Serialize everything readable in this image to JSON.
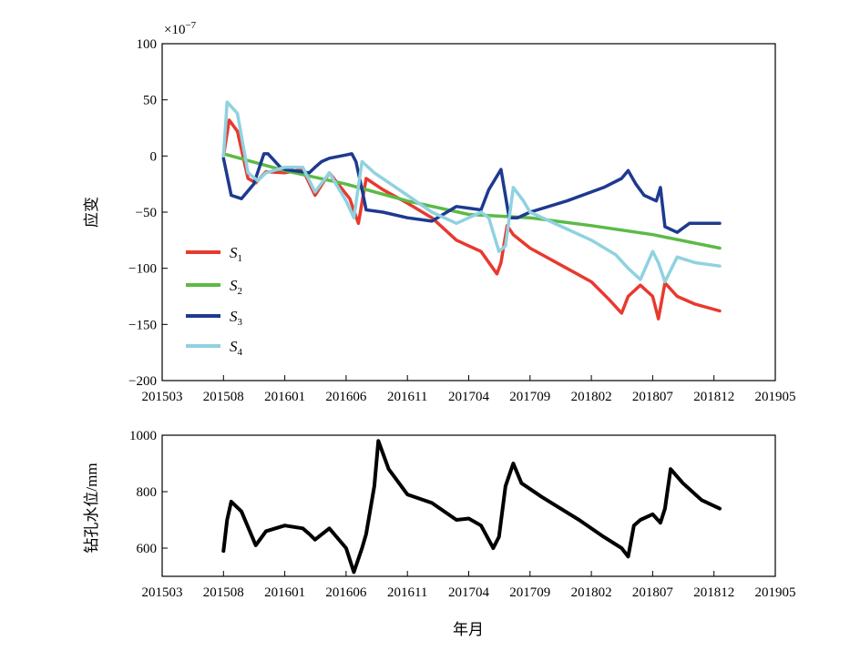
{
  "chart_data": [
    {
      "type": "line",
      "ylabel": "应变",
      "xlabel": "",
      "y_scale_note": "×10⁻⁷",
      "y_scale_base": "×10",
      "y_scale_exp": "−7",
      "x_tick_labels": [
        "201503",
        "201508",
        "201601",
        "201606",
        "201611",
        "201704",
        "201709",
        "201802",
        "201807",
        "201812",
        "201905"
      ],
      "xlim": [
        "2015-03",
        "2019-05"
      ],
      "ylim": [
        -200,
        100
      ],
      "y_ticks": [
        100,
        50,
        0,
        -50,
        -100,
        -150,
        -200
      ],
      "y_tick_labels": [
        "100",
        "50",
        "0",
        "−50",
        "−100",
        "−150",
        "−200"
      ],
      "grid": false,
      "legend_position": "center-left",
      "series": [
        {
          "name": "S1",
          "legend_main": "S",
          "legend_sub": "1",
          "color": "#e8392f",
          "x": [
            "2015-08-01",
            "2015-08-15",
            "2015-09-05",
            "2015-10-01",
            "2015-10-20",
            "2015-11-15",
            "2016-01-01",
            "2016-02-15",
            "2016-03-15",
            "2016-04-20",
            "2016-06-10",
            "2016-07-01",
            "2016-07-20",
            "2016-09-01",
            "2016-11-01",
            "2017-01-01",
            "2017-03-01",
            "2017-05-01",
            "2017-06-10",
            "2017-06-20",
            "2017-07-05",
            "2017-07-20",
            "2017-09-01",
            "2017-12-01",
            "2018-02-01",
            "2018-03-15",
            "2018-04-15",
            "2018-05-01",
            "2018-06-01",
            "2018-07-01",
            "2018-07-15",
            "2018-08-01",
            "2018-09-01",
            "2018-10-15",
            "2018-12-15"
          ],
          "y": [
            0,
            32,
            22,
            -20,
            -24,
            -14,
            -15,
            -12,
            -35,
            -15,
            -38,
            -60,
            -20,
            -30,
            -42,
            -55,
            -75,
            -85,
            -105,
            -95,
            -62,
            -70,
            -82,
            -100,
            -112,
            -128,
            -140,
            -125,
            -115,
            -125,
            -145,
            -113,
            -125,
            -132,
            -138
          ]
        },
        {
          "name": "S2",
          "legend_main": "S",
          "legend_sub": "2",
          "color": "#5cba47",
          "x": [
            "2015-08-01",
            "2016-01-01",
            "2016-06-01",
            "2016-11-01",
            "2017-04-01",
            "2017-09-01",
            "2018-02-01",
            "2018-07-01",
            "2018-12-15"
          ],
          "y": [
            2,
            -13,
            -25,
            -40,
            -52,
            -55,
            -62,
            -70,
            -82
          ]
        },
        {
          "name": "S3",
          "legend_main": "S",
          "legend_sub": "3",
          "color": "#1e3a8f",
          "x": [
            "2015-08-01",
            "2015-08-20",
            "2015-09-15",
            "2015-10-15",
            "2015-11-10",
            "2015-11-20",
            "2015-12-20",
            "2016-01-01",
            "2016-03-01",
            "2016-03-15",
            "2016-04-01",
            "2016-04-20",
            "2016-06-15",
            "2016-06-25",
            "2016-07-10",
            "2016-07-20",
            "2016-09-01",
            "2016-11-01",
            "2017-01-01",
            "2017-03-01",
            "2017-05-01",
            "2017-05-20",
            "2017-06-20",
            "2017-07-10",
            "2017-08-01",
            "2017-09-01",
            "2017-12-01",
            "2018-03-01",
            "2018-04-15",
            "2018-05-01",
            "2018-05-20",
            "2018-06-10",
            "2018-07-10",
            "2018-07-20",
            "2018-08-01",
            "2018-09-01",
            "2018-10-01",
            "2018-12-15"
          ],
          "y": [
            -2,
            -35,
            -38,
            -25,
            2,
            2,
            -10,
            -12,
            -15,
            -10,
            -5,
            -2,
            2,
            -5,
            -30,
            -48,
            -50,
            -55,
            -58,
            -45,
            -48,
            -30,
            -12,
            -55,
            -55,
            -50,
            -40,
            -28,
            -20,
            -13,
            -25,
            -35,
            -40,
            -28,
            -63,
            -68,
            -60,
            -60
          ]
        },
        {
          "name": "S4",
          "legend_main": "S",
          "legend_sub": "4",
          "color": "#8fd2e0",
          "x": [
            "2015-08-01",
            "2015-08-10",
            "2015-09-05",
            "2015-10-01",
            "2015-10-25",
            "2015-11-15",
            "2016-01-01",
            "2016-02-15",
            "2016-03-15",
            "2016-04-20",
            "2016-06-01",
            "2016-06-20",
            "2016-07-10",
            "2016-08-10",
            "2016-11-01",
            "2017-01-01",
            "2017-03-01",
            "2017-04-01",
            "2017-05-01",
            "2017-05-20",
            "2017-06-15",
            "2017-07-01",
            "2017-07-20",
            "2017-08-15",
            "2017-09-01",
            "2017-12-01",
            "2018-02-01",
            "2018-04-01",
            "2018-05-01",
            "2018-06-01",
            "2018-07-01",
            "2018-07-15",
            "2018-08-01",
            "2018-09-01",
            "2018-10-15",
            "2018-12-15"
          ],
          "y": [
            0,
            48,
            38,
            -15,
            -22,
            -15,
            -10,
            -10,
            -32,
            -15,
            -40,
            -55,
            -5,
            -15,
            -35,
            -50,
            -60,
            -55,
            -50,
            -55,
            -85,
            -80,
            -28,
            -40,
            -50,
            -65,
            -75,
            -88,
            -100,
            -110,
            -85,
            -95,
            -112,
            -90,
            -95,
            -98
          ]
        }
      ]
    },
    {
      "type": "line",
      "ylabel": "钻孔水位/mm",
      "xlabel": "年月",
      "x_tick_labels": [
        "201503",
        "201508",
        "201601",
        "201606",
        "201611",
        "201704",
        "201709",
        "201802",
        "201807",
        "201812",
        "201905"
      ],
      "xlim": [
        "2015-03",
        "2019-05"
      ],
      "ylim": [
        500,
        1000
      ],
      "y_ticks": [
        1000,
        800,
        600
      ],
      "y_tick_labels": [
        "1000",
        "800",
        "600"
      ],
      "grid": false,
      "series": [
        {
          "color": "#000000",
          "x": [
            "2015-08-01",
            "2015-08-10",
            "2015-08-20",
            "2015-09-15",
            "2015-10-20",
            "2015-11-15",
            "2016-01-01",
            "2016-02-15",
            "2016-03-01",
            "2016-03-15",
            "2016-04-20",
            "2016-06-01",
            "2016-06-20",
            "2016-07-10",
            "2016-07-20",
            "2016-08-10",
            "2016-08-20",
            "2016-09-15",
            "2016-11-01",
            "2017-01-01",
            "2017-03-01",
            "2017-04-01",
            "2017-05-01",
            "2017-06-01",
            "2017-06-15",
            "2017-07-01",
            "2017-07-20",
            "2017-08-10",
            "2017-10-01",
            "2018-01-01",
            "2018-03-01",
            "2018-04-15",
            "2018-05-01",
            "2018-05-15",
            "2018-06-01",
            "2018-07-01",
            "2018-07-20",
            "2018-08-01",
            "2018-08-15",
            "2018-09-15",
            "2018-11-01",
            "2018-12-15"
          ],
          "y": [
            590,
            700,
            765,
            730,
            610,
            660,
            680,
            670,
            650,
            630,
            670,
            600,
            515,
            600,
            650,
            820,
            980,
            880,
            790,
            760,
            700,
            705,
            680,
            600,
            640,
            820,
            900,
            830,
            780,
            700,
            640,
            600,
            570,
            680,
            700,
            720,
            690,
            740,
            880,
            830,
            770,
            740
          ]
        }
      ]
    }
  ]
}
